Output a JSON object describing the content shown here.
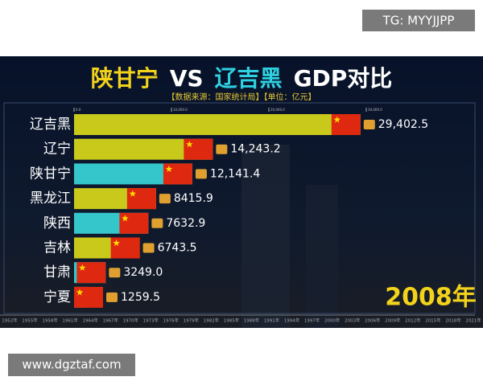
{
  "watermark_top": "TG: MYYJJPP",
  "watermark_bottom": "www.dgztaf.com",
  "chart_data": {
    "type": "bar",
    "orientation": "horizontal",
    "title_parts": [
      {
        "text": "陕甘宁",
        "color": "#f2d21a"
      },
      {
        "text": "VS",
        "color": "#ffffff"
      },
      {
        "text": "辽吉黑",
        "color": "#2fd0e0"
      },
      {
        "text": "GDP对比",
        "color": "#ffffff"
      }
    ],
    "subtitle": "【数据来源：国家统计局】【单位：亿元】",
    "categories": [
      "辽吉黑",
      "辽宁",
      "陕甘宁",
      "黑龙江",
      "陕西",
      "吉林",
      "甘肃",
      "宁夏"
    ],
    "values": [
      29402.5,
      14243.2,
      12141.4,
      8415.9,
      7632.9,
      6743.5,
      3249.0,
      1259.5
    ],
    "value_labels": [
      "29,402.5",
      "14,243.2",
      "12,141.4",
      "8415.9",
      "7632.9",
      "6743.5",
      "3249.0",
      "1259.5"
    ],
    "colors": [
      "#c9c91c",
      "#c9c91c",
      "#35c6cc",
      "#c9c91c",
      "#35c6cc",
      "#c9c91c",
      "#35c6cc",
      "#35c6cc"
    ],
    "xlim": [
      0,
      30000
    ],
    "xticks": [
      {
        "value": 0,
        "label": "0.0"
      },
      {
        "value": 10000,
        "label": "10,000.0"
      },
      {
        "value": 20000,
        "label": "20,000.0"
      },
      {
        "value": 30000,
        "label": "30,000.0"
      }
    ],
    "current_year": "2008年",
    "timeline": [
      "1952年",
      "1955年",
      "1958年",
      "1961年",
      "1964年",
      "1967年",
      "1970年",
      "1973年",
      "1976年",
      "1979年",
      "1982年",
      "1985年",
      "1988年",
      "1991年",
      "1994年",
      "1997年",
      "2000年",
      "2003年",
      "2006年",
      "2009年",
      "2012年",
      "2015年",
      "2018年",
      "2021年"
    ]
  }
}
